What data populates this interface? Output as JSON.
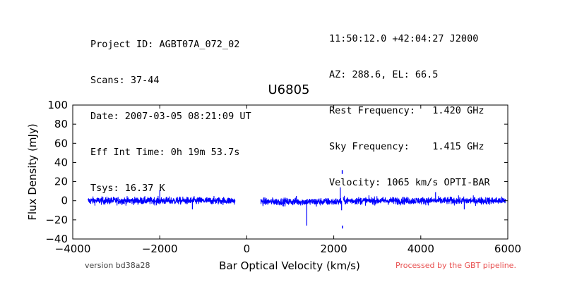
{
  "header_left": [
    "Project ID: AGBT07A_072_02",
    "Scans: 37-44",
    "Date: 2007-03-05 08:21:09 UT",
    "Eff Int Time: 0h 19m 53.7s",
    "Tsys: 16.37 K"
  ],
  "header_right": [
    "11:50:12.0 +42:04:27 J2000",
    "AZ: 288.6, EL: 66.5",
    "Rest Frequency:   1.420 GHz",
    "Sky Frequency:    1.415 GHz",
    "Velocity: 1065 km/s OPTI-BAR"
  ],
  "footer": {
    "version": "version bd38a28",
    "pipeline": "Processed by the GBT pipeline."
  },
  "chart_data": {
    "type": "line",
    "title": "U6805",
    "xlabel": "Bar Optical Velocity (km/s)",
    "ylabel": "Flux Density (mJy)",
    "xlim": [
      -4000,
      6000
    ],
    "ylim": [
      -40,
      100
    ],
    "xticks": [
      "−4000",
      "−2000",
      "0",
      "2000",
      "4000",
      "6000"
    ],
    "yticks": [
      "−40",
      "−20",
      "0",
      "20",
      "40",
      "60",
      "80",
      "100"
    ],
    "grid": false,
    "line_color": "#0000ff",
    "series": [
      {
        "segments": [
          {
            "x_range": [
              -3650,
              -270
            ],
            "baseline": 0,
            "noise_rms": 2
          },
          {
            "x_range": [
              320,
              2180
            ],
            "baseline": -1,
            "noise_rms": 2
          },
          {
            "x_range": [
              2220,
              5950
            ],
            "baseline": 0,
            "noise_rms": 2
          }
        ],
        "spikes": [
          {
            "x": -2000,
            "y": 11
          },
          {
            "x": -1250,
            "y": -9
          },
          {
            "x": 1140,
            "y": 5
          },
          {
            "x": 1380,
            "y": -26
          },
          {
            "x": 1600,
            "y": -6
          },
          {
            "x": 2150,
            "y": 14
          },
          {
            "x": 2180,
            "y": -10
          },
          {
            "x": 4340,
            "y": 9
          },
          {
            "x": 5000,
            "y": -9
          }
        ],
        "isolated": [
          {
            "x": 2195,
            "y_range": [
              28,
              32
            ]
          },
          {
            "x": 2200,
            "y_range": [
              -26,
              -29
            ]
          }
        ]
      }
    ]
  }
}
